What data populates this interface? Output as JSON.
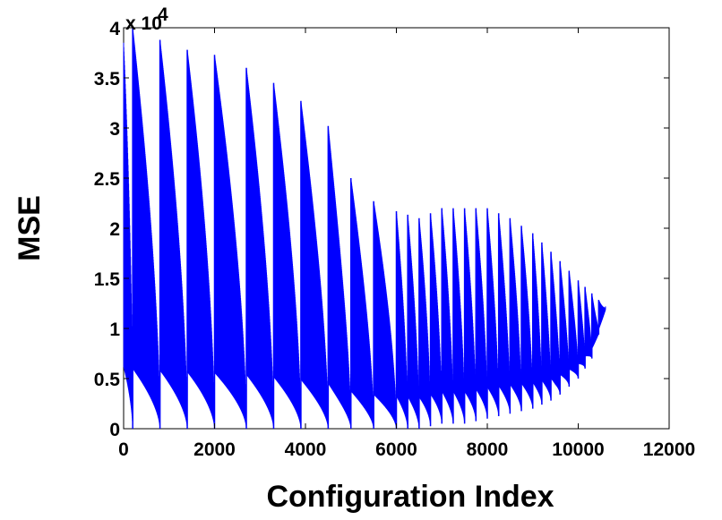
{
  "chart_data": {
    "type": "line",
    "title": "",
    "xlabel": "Configuration Index",
    "ylabel": "MSE",
    "y_multiplier_label": "x 10",
    "y_multiplier_exponent": "4",
    "xlim": [
      0,
      12000
    ],
    "ylim": [
      0,
      4
    ],
    "x_ticks": [
      "0",
      "2000",
      "4000",
      "6000",
      "8000",
      "10000",
      "12000"
    ],
    "y_ticks": [
      "0",
      "0.5",
      "1",
      "1.5",
      "2",
      "2.5",
      "3",
      "3.5",
      "4"
    ],
    "grid": false,
    "legend": "none",
    "series_color": "#0000ff",
    "x_end": 10600,
    "series": [
      {
        "description_of_shape": "oscillating envelope",
        "envelope": {
          "x": [
            0,
            200,
            800,
            1400,
            2000,
            2700,
            3300,
            3900,
            4500,
            5000,
            5500,
            6000,
            6500,
            7000,
            7500,
            8000,
            8500,
            9000,
            9500,
            10000,
            10300,
            10600
          ],
          "upper": [
            3.85,
            4.0,
            3.88,
            3.78,
            3.73,
            3.6,
            3.45,
            3.27,
            3.02,
            2.5,
            2.27,
            2.17,
            2.1,
            2.2,
            2.2,
            2.2,
            2.1,
            1.95,
            1.72,
            1.48,
            1.35,
            1.22
          ],
          "lower": [
            0.05,
            0.0,
            0.0,
            0.0,
            0.0,
            0.0,
            0.0,
            0.0,
            0.0,
            0.0,
            0.0,
            0.0,
            0.0,
            0.05,
            0.05,
            0.1,
            0.15,
            0.2,
            0.3,
            0.5,
            0.7,
            1.18
          ]
        },
        "peak_x": [
          200,
          800,
          1400,
          2000,
          2700,
          3300,
          3900,
          4500,
          5000,
          5500,
          6000,
          6250,
          6500,
          6750,
          7000,
          7250,
          7500,
          7750,
          8000,
          8250,
          8500,
          8750,
          9000,
          9200,
          9400,
          9600,
          9800,
          10000,
          10150,
          10300,
          10450
        ]
      }
    ]
  }
}
